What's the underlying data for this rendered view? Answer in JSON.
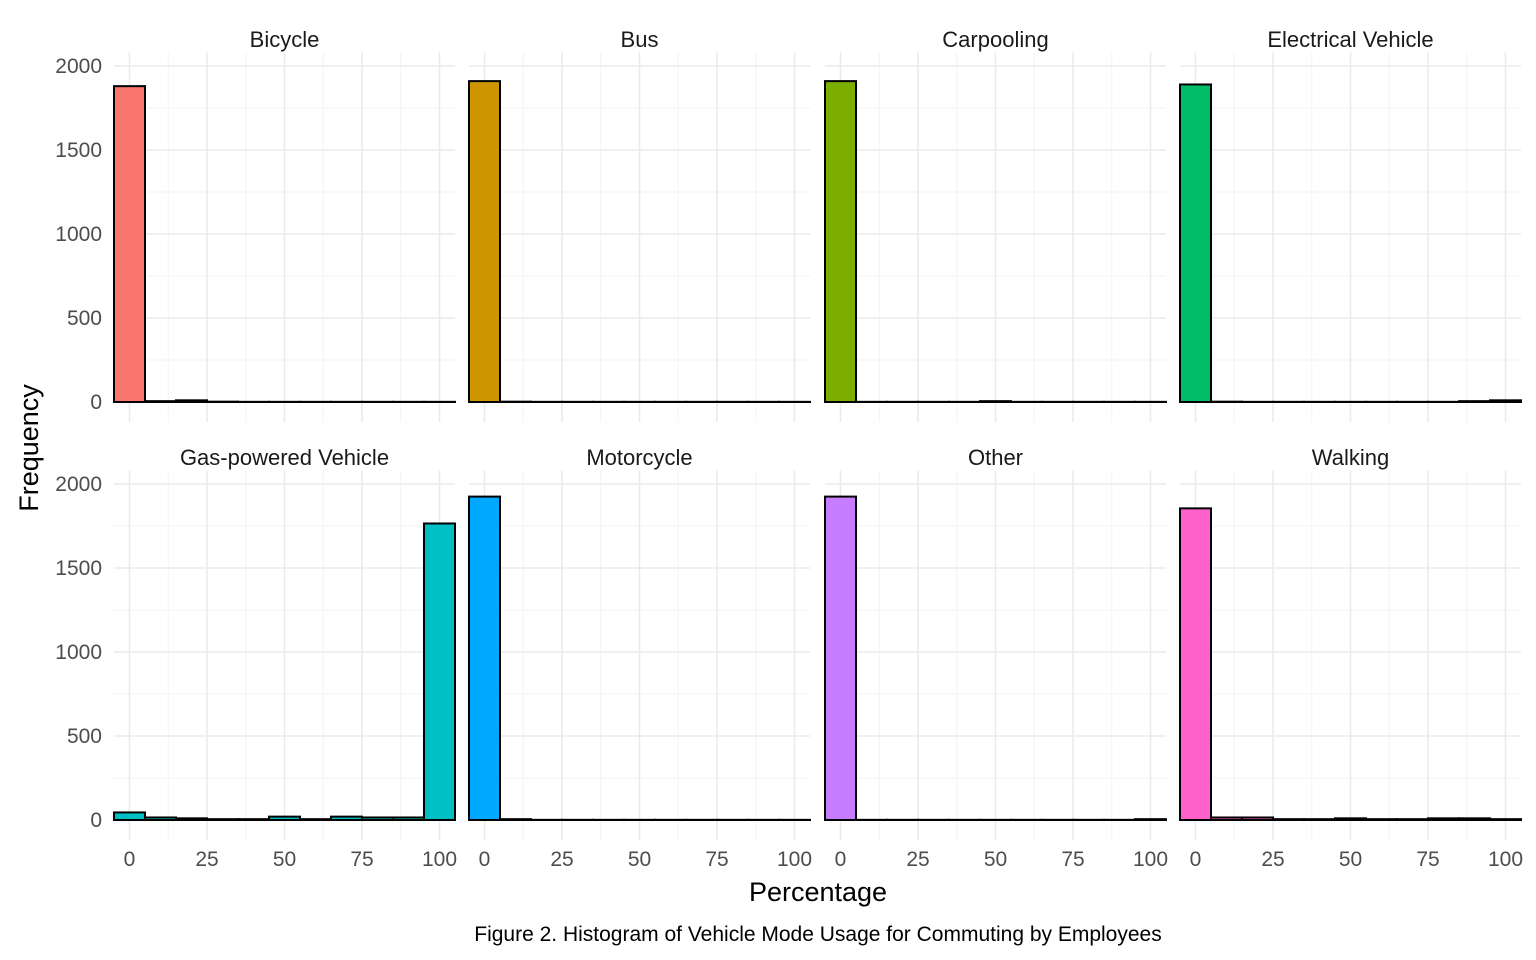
{
  "chart_data": {
    "type": "bar",
    "chart_kind": "faceted histogram",
    "caption": "Figure 2. Histogram of Vehicle Mode Usage for Commuting by Employees",
    "xlabel": "Percentage",
    "ylabel": "Frequency",
    "xlim": [
      -5,
      105
    ],
    "ylim": [
      0,
      2000
    ],
    "x_ticks": [
      0,
      25,
      50,
      75,
      100
    ],
    "y_ticks": [
      0,
      500,
      1000,
      1500,
      2000
    ],
    "grid": true,
    "legend": "none",
    "bin_centers": [
      0,
      10,
      20,
      30,
      40,
      50,
      60,
      70,
      80,
      90,
      100
    ],
    "facets": [
      {
        "name": "Bicycle",
        "color": "#F8766D",
        "values": [
          1880,
          5,
          10,
          2,
          1,
          1,
          1,
          1,
          1,
          1,
          1
        ]
      },
      {
        "name": "Bus",
        "color": "#CD9600",
        "values": [
          1910,
          2,
          1,
          1,
          1,
          1,
          1,
          1,
          1,
          1,
          1
        ]
      },
      {
        "name": "Carpooling",
        "color": "#7CAE00",
        "values": [
          1910,
          1,
          1,
          1,
          1,
          5,
          1,
          1,
          1,
          1,
          1
        ]
      },
      {
        "name": "Electrical Vehicle",
        "color": "#00BE67",
        "values": [
          1890,
          2,
          1,
          1,
          1,
          1,
          1,
          1,
          1,
          5,
          10
        ]
      },
      {
        "name": "Gas-powered Vehicle",
        "color": "#00BFC4",
        "values": [
          45,
          15,
          10,
          5,
          5,
          20,
          5,
          20,
          15,
          15,
          1765
        ]
      },
      {
        "name": "Motorcycle",
        "color": "#00A9FF",
        "values": [
          1925,
          5,
          1,
          1,
          1,
          1,
          1,
          1,
          1,
          1,
          1
        ]
      },
      {
        "name": "Other",
        "color": "#C77CFF",
        "values": [
          1925,
          1,
          1,
          1,
          1,
          1,
          1,
          1,
          1,
          1,
          5
        ]
      },
      {
        "name": "Walking",
        "color": "#FF61CC",
        "values": [
          1855,
          15,
          15,
          5,
          5,
          10,
          5,
          5,
          10,
          10,
          5
        ]
      }
    ]
  }
}
